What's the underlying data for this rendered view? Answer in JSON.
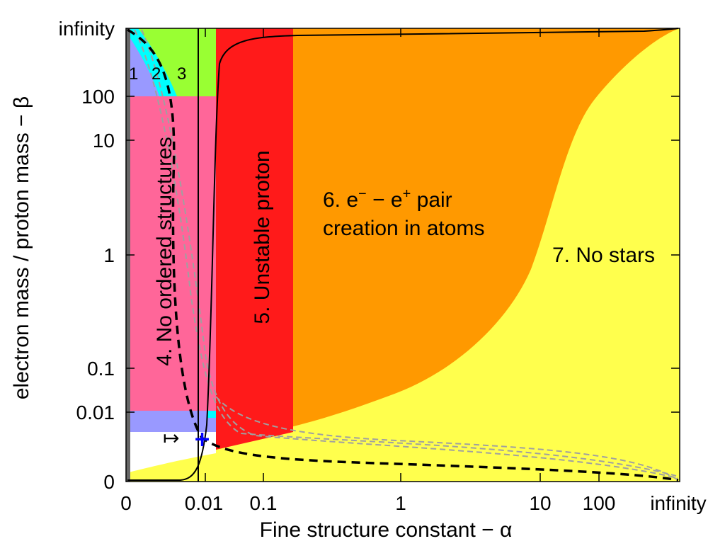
{
  "chart_data": {
    "type": "area",
    "title": "",
    "xlabel": "Fine structure constant − α",
    "ylabel": "electron mass / proton mass − β",
    "x_scale": "compactified-log",
    "y_scale": "compactified-log",
    "x_ticks": [
      "0",
      "0.01",
      "0.1",
      "1",
      "10",
      "100",
      "infinity"
    ],
    "y_ticks": [
      "0",
      "0.01",
      "0.1",
      "1",
      "10",
      "100",
      "infinity"
    ],
    "grid": false,
    "colors": {
      "region1": "#9999ff",
      "region2": "#00ffff",
      "region3": "#99ff33",
      "region4": "#ff6699",
      "region5": "#ff1a1a",
      "region6": "#ff9900",
      "region7": "#ffff4d",
      "axis_bar": "#666666",
      "marker": "#0000ff"
    },
    "regions": [
      {
        "id": "1",
        "label": "1"
      },
      {
        "id": "2",
        "label": "2"
      },
      {
        "id": "3",
        "label": "3"
      },
      {
        "id": "4",
        "label": "4. No ordered structures"
      },
      {
        "id": "5",
        "label": "5. Unstable proton"
      },
      {
        "id": "6",
        "label_line1": "6. e",
        "sup1": "−",
        "label_mid": " − e",
        "sup2": "+",
        "label_end": " pair",
        "label_line2": "creation in atoms"
      },
      {
        "id": "7",
        "label": "7. No stars"
      }
    ],
    "marker": {
      "symbol": "+",
      "arrow": "↦",
      "x": 0.0073,
      "y": 0.00054
    }
  }
}
